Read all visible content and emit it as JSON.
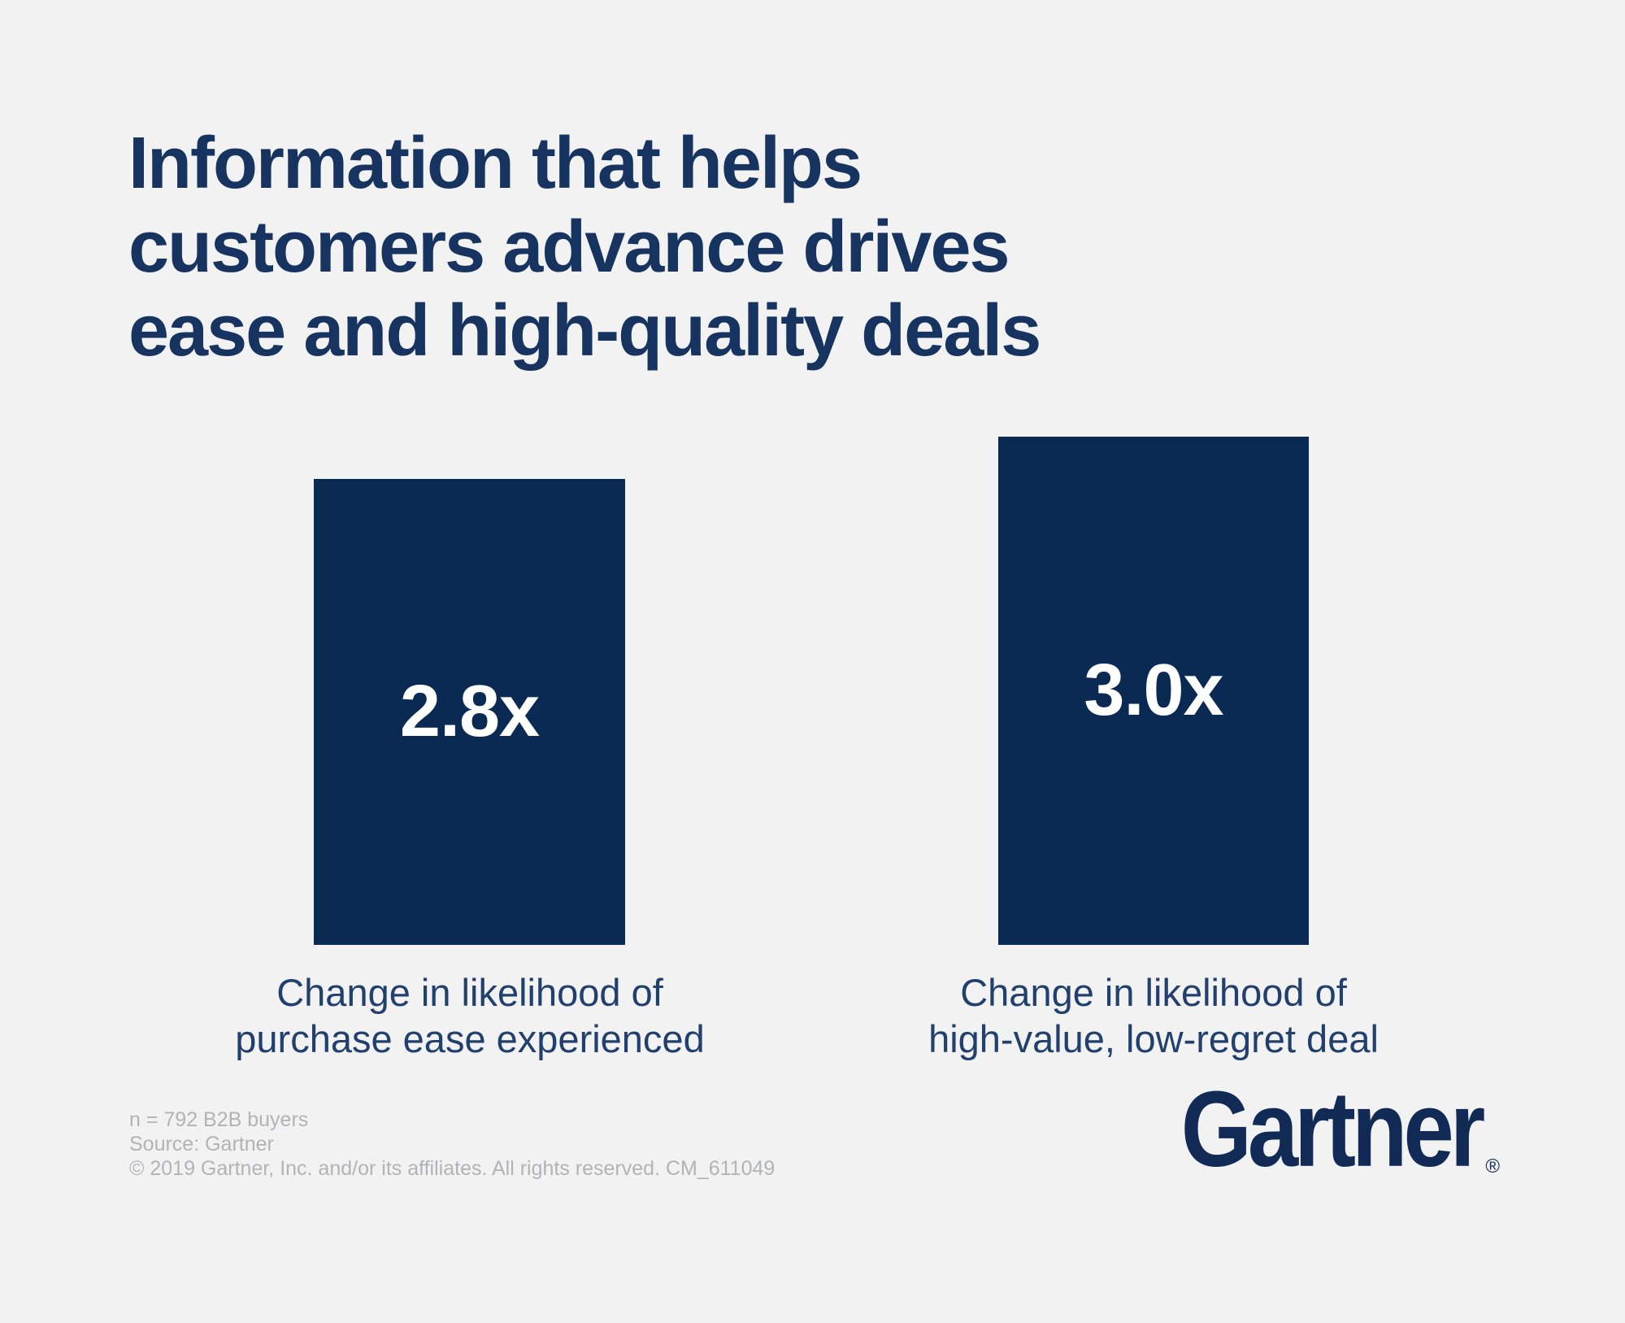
{
  "title": {
    "lines": [
      "Information that helps",
      "customers advance drives",
      "ease and high-quality deals"
    ]
  },
  "chart_data": {
    "type": "bar",
    "categories": [
      "Change in likelihood of purchase ease experienced",
      "Change in likelihood of high-value, low-regret deal"
    ],
    "values": [
      2.8,
      3.0
    ],
    "value_labels": [
      "2.8x",
      "3.0x"
    ],
    "title": "Information that helps customers advance drives ease and high-quality deals",
    "xlabel": "",
    "ylabel": "",
    "ylim": [
      0,
      3.2
    ],
    "grid": false,
    "legend": false,
    "bar_color": "#0a2a54",
    "value_label_position": "inside-center"
  },
  "bars": [
    {
      "value_label": "2.8x",
      "caption_lines": [
        "Change in likelihood of",
        "purchase ease experienced"
      ]
    },
    {
      "value_label": "3.0x",
      "caption_lines": [
        "Change in likelihood of",
        "high-value, low-regret deal"
      ]
    }
  ],
  "footer": {
    "lines": [
      "n = 792 B2B buyers",
      "Source: Gartner",
      "© 2019 Gartner, Inc. and/or its affiliates. All rights reserved. CM_611049"
    ]
  },
  "logo": {
    "text": "Gartner",
    "registered_mark": "®"
  },
  "colors": {
    "background": "#f2f2f3",
    "bar": "#0a2a54",
    "title": "#17335f",
    "caption": "#21406d",
    "footer": "#b2b3b5",
    "logo": "#112b56",
    "value_label": "#ffffff"
  }
}
